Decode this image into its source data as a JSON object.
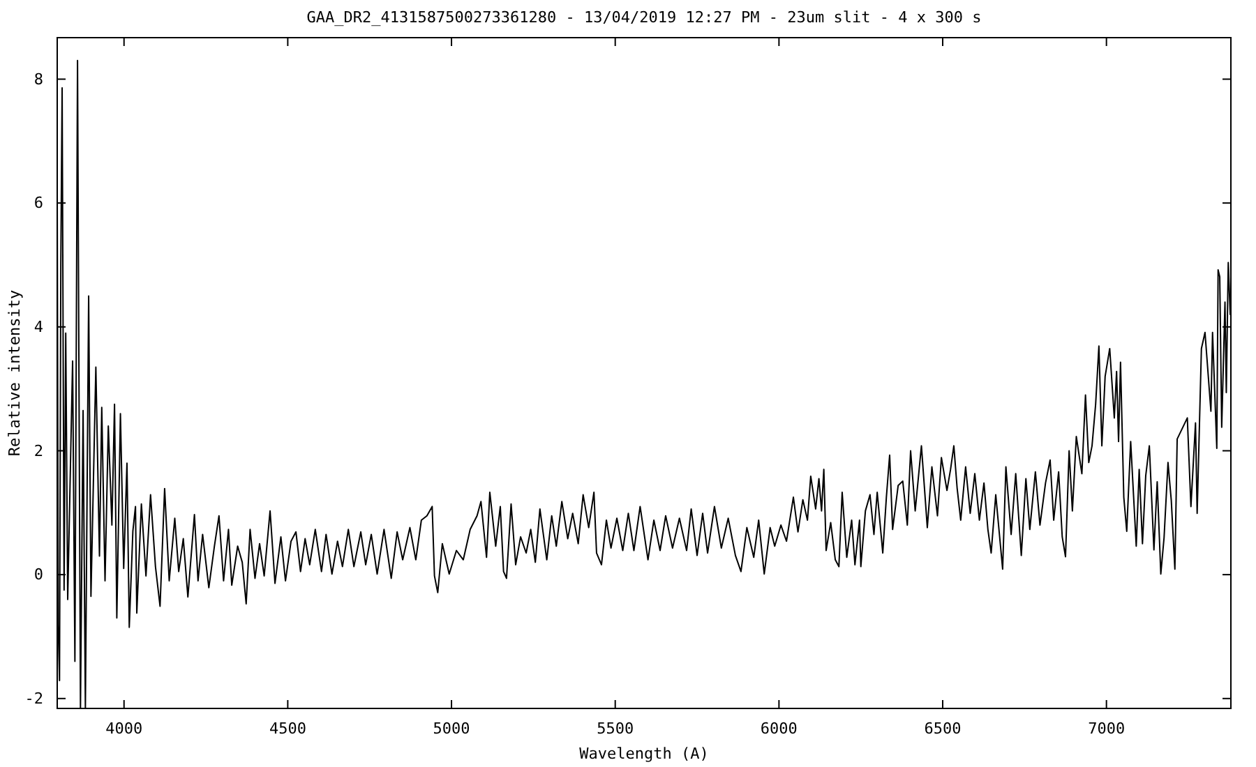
{
  "chart_data": {
    "type": "line",
    "title": "GAA_DR2_4131587500273361280 - 13/04/2019 12:27 PM - 23um slit - 4 x 300 s",
    "xlabel": "Wavelength (A)",
    "ylabel": "Relative intensity",
    "xlim": [
      3796,
      7380
    ],
    "ylim": [
      -2.16,
      8.67
    ],
    "xticks": [
      4000,
      4500,
      5000,
      5500,
      6000,
      6500,
      7000
    ],
    "yticks": [
      -2,
      0,
      2,
      4,
      6,
      8
    ],
    "x": [
      3796,
      3799,
      3803,
      3807,
      3811,
      3817,
      3822,
      3828,
      3843,
      3850,
      3858,
      3867,
      3875,
      3882,
      3892,
      3899,
      3914,
      3925,
      3932,
      3942,
      3952,
      3963,
      3971,
      3978,
      3989,
      3999,
      4009,
      4016,
      4027,
      4035,
      4039,
      4053,
      4067,
      4081,
      4096,
      4110,
      4124,
      4138,
      4155,
      4167,
      4181,
      4195,
      4215,
      4226,
      4240,
      4259,
      4276,
      4290,
      4304,
      4319,
      4329,
      4347,
      4361,
      4373,
      4385,
      4400,
      4414,
      4428,
      4446,
      4461,
      4479,
      4493,
      4510,
      4525,
      4539,
      4553,
      4567,
      4584,
      4603,
      4617,
      4635,
      4652,
      4667,
      4685,
      4702,
      4723,
      4738,
      4755,
      4773,
      4794,
      4816,
      4834,
      4851,
      4873,
      4891,
      4908,
      4925,
      4941,
      4948,
      4958,
      4972,
      4993,
      5015,
      5036,
      5057,
      5078,
      5090,
      5107,
      5117,
      5135,
      5149,
      5159,
      5168,
      5182,
      5196,
      5211,
      5228,
      5242,
      5256,
      5270,
      5291,
      5306,
      5320,
      5337,
      5355,
      5370,
      5387,
      5402,
      5419,
      5435,
      5443,
      5458,
      5473,
      5487,
      5505,
      5523,
      5540,
      5557,
      5576,
      5600,
      5618,
      5637,
      5654,
      5675,
      5696,
      5718,
      5732,
      5750,
      5767,
      5782,
      5803,
      5824,
      5845,
      5867,
      5884,
      5902,
      5923,
      5938,
      5955,
      5973,
      5987,
      6006,
      6023,
      6044,
      6058,
      6073,
      6087,
      6097,
      6112,
      6122,
      6130,
      6137,
      6144,
      6158,
      6172,
      6183,
      6193,
      6207,
      6222,
      6232,
      6246,
      6250,
      6264,
      6278,
      6290,
      6300,
      6317,
      6328,
      6338,
      6347,
      6364,
      6378,
      6392,
      6402,
      6416,
      6435,
      6453,
      6467,
      6484,
      6496,
      6513,
      6524,
      6534,
      6544,
      6555,
      6570,
      6584,
      6598,
      6612,
      6626,
      6638,
      6648,
      6662,
      6683,
      6693,
      6709,
      6723,
      6740,
      6754,
      6766,
      6783,
      6797,
      6814,
      6828,
      6839,
      6854,
      6865,
      6875,
      6886,
      6896,
      6908,
      6925,
      6936,
      6946,
      6956,
      6967,
      6977,
      6986,
      6996,
      7010,
      7024,
      7031,
      7037,
      7043,
      7053,
      7062,
      7074,
      7091,
      7100,
      7110,
      7120,
      7131,
      7145,
      7155,
      7166,
      7176,
      7188,
      7198,
      7209,
      7216,
      7247,
      7258,
      7272,
      7277,
      7290,
      7301,
      7319,
      7324,
      7337,
      7341,
      7346,
      7352,
      7362,
      7366,
      7372,
      7378
    ],
    "series": [
      {
        "color": "#000000",
        "values": [
          6.16,
          -0.81,
          -1.71,
          5.0,
          7.86,
          -0.25,
          3.9,
          -0.4,
          3.45,
          -1.4,
          8.3,
          -2.15,
          2.65,
          -2.15,
          4.5,
          -0.35,
          3.35,
          0.3,
          2.7,
          -0.1,
          2.4,
          0.8,
          2.75,
          -0.7,
          2.6,
          0.1,
          1.8,
          -0.85,
          0.7,
          1.1,
          -0.62,
          1.14,
          -0.02,
          1.29,
          0.13,
          -0.51,
          1.39,
          -0.1,
          0.91,
          0.05,
          0.58,
          -0.36,
          0.97,
          -0.1,
          0.65,
          -0.21,
          0.46,
          0.95,
          -0.1,
          0.73,
          -0.17,
          0.46,
          0.2,
          -0.47,
          0.73,
          -0.06,
          0.5,
          -0.02,
          1.03,
          -0.14,
          0.61,
          -0.1,
          0.54,
          0.69,
          0.05,
          0.58,
          0.16,
          0.73,
          0.05,
          0.65,
          0.01,
          0.54,
          0.13,
          0.73,
          0.13,
          0.69,
          0.16,
          0.65,
          0.01,
          0.73,
          -0.06,
          0.69,
          0.24,
          0.76,
          0.24,
          0.88,
          0.95,
          1.1,
          -0.02,
          -0.29,
          0.5,
          0.01,
          0.39,
          0.24,
          0.73,
          0.95,
          1.18,
          0.28,
          1.33,
          0.46,
          1.1,
          0.05,
          -0.06,
          1.14,
          0.16,
          0.61,
          0.35,
          0.73,
          0.2,
          1.06,
          0.24,
          0.95,
          0.46,
          1.18,
          0.58,
          0.99,
          0.5,
          1.29,
          0.76,
          1.33,
          0.35,
          0.16,
          0.88,
          0.43,
          0.91,
          0.39,
          0.99,
          0.39,
          1.1,
          0.24,
          0.88,
          0.39,
          0.95,
          0.43,
          0.91,
          0.39,
          1.06,
          0.31,
          0.99,
          0.35,
          1.1,
          0.43,
          0.91,
          0.31,
          0.05,
          0.76,
          0.28,
          0.88,
          0.01,
          0.76,
          0.46,
          0.8,
          0.54,
          1.25,
          0.69,
          1.21,
          0.88,
          1.59,
          1.06,
          1.55,
          1.03,
          1.7,
          0.39,
          0.84,
          0.24,
          0.13,
          1.33,
          0.28,
          0.88,
          0.16,
          0.88,
          0.13,
          1.03,
          1.29,
          0.65,
          1.33,
          0.35,
          1.25,
          1.93,
          0.73,
          1.44,
          1.51,
          0.8,
          2.0,
          1.03,
          2.08,
          0.76,
          1.74,
          0.95,
          1.89,
          1.36,
          1.7,
          2.08,
          1.4,
          0.88,
          1.74,
          0.99,
          1.63,
          0.88,
          1.48,
          0.73,
          0.35,
          1.29,
          0.09,
          1.74,
          0.65,
          1.63,
          0.31,
          1.55,
          0.73,
          1.66,
          0.8,
          1.48,
          1.85,
          0.88,
          1.66,
          0.61,
          0.29,
          2.0,
          1.03,
          2.23,
          1.63,
          2.9,
          1.81,
          2.08,
          2.75,
          3.69,
          2.08,
          3.2,
          3.65,
          2.53,
          3.28,
          2.15,
          3.43,
          1.25,
          0.7,
          2.15,
          0.46,
          1.7,
          0.5,
          1.6,
          2.08,
          0.4,
          1.5,
          0.01,
          0.6,
          1.81,
          1.2,
          0.09,
          2.19,
          2.53,
          1.1,
          2.45,
          0.99,
          3.65,
          3.91,
          2.64,
          3.91,
          2.04,
          4.92,
          4.81,
          2.38,
          4.4,
          2.94,
          5.04,
          4.2
        ]
      }
    ]
  }
}
